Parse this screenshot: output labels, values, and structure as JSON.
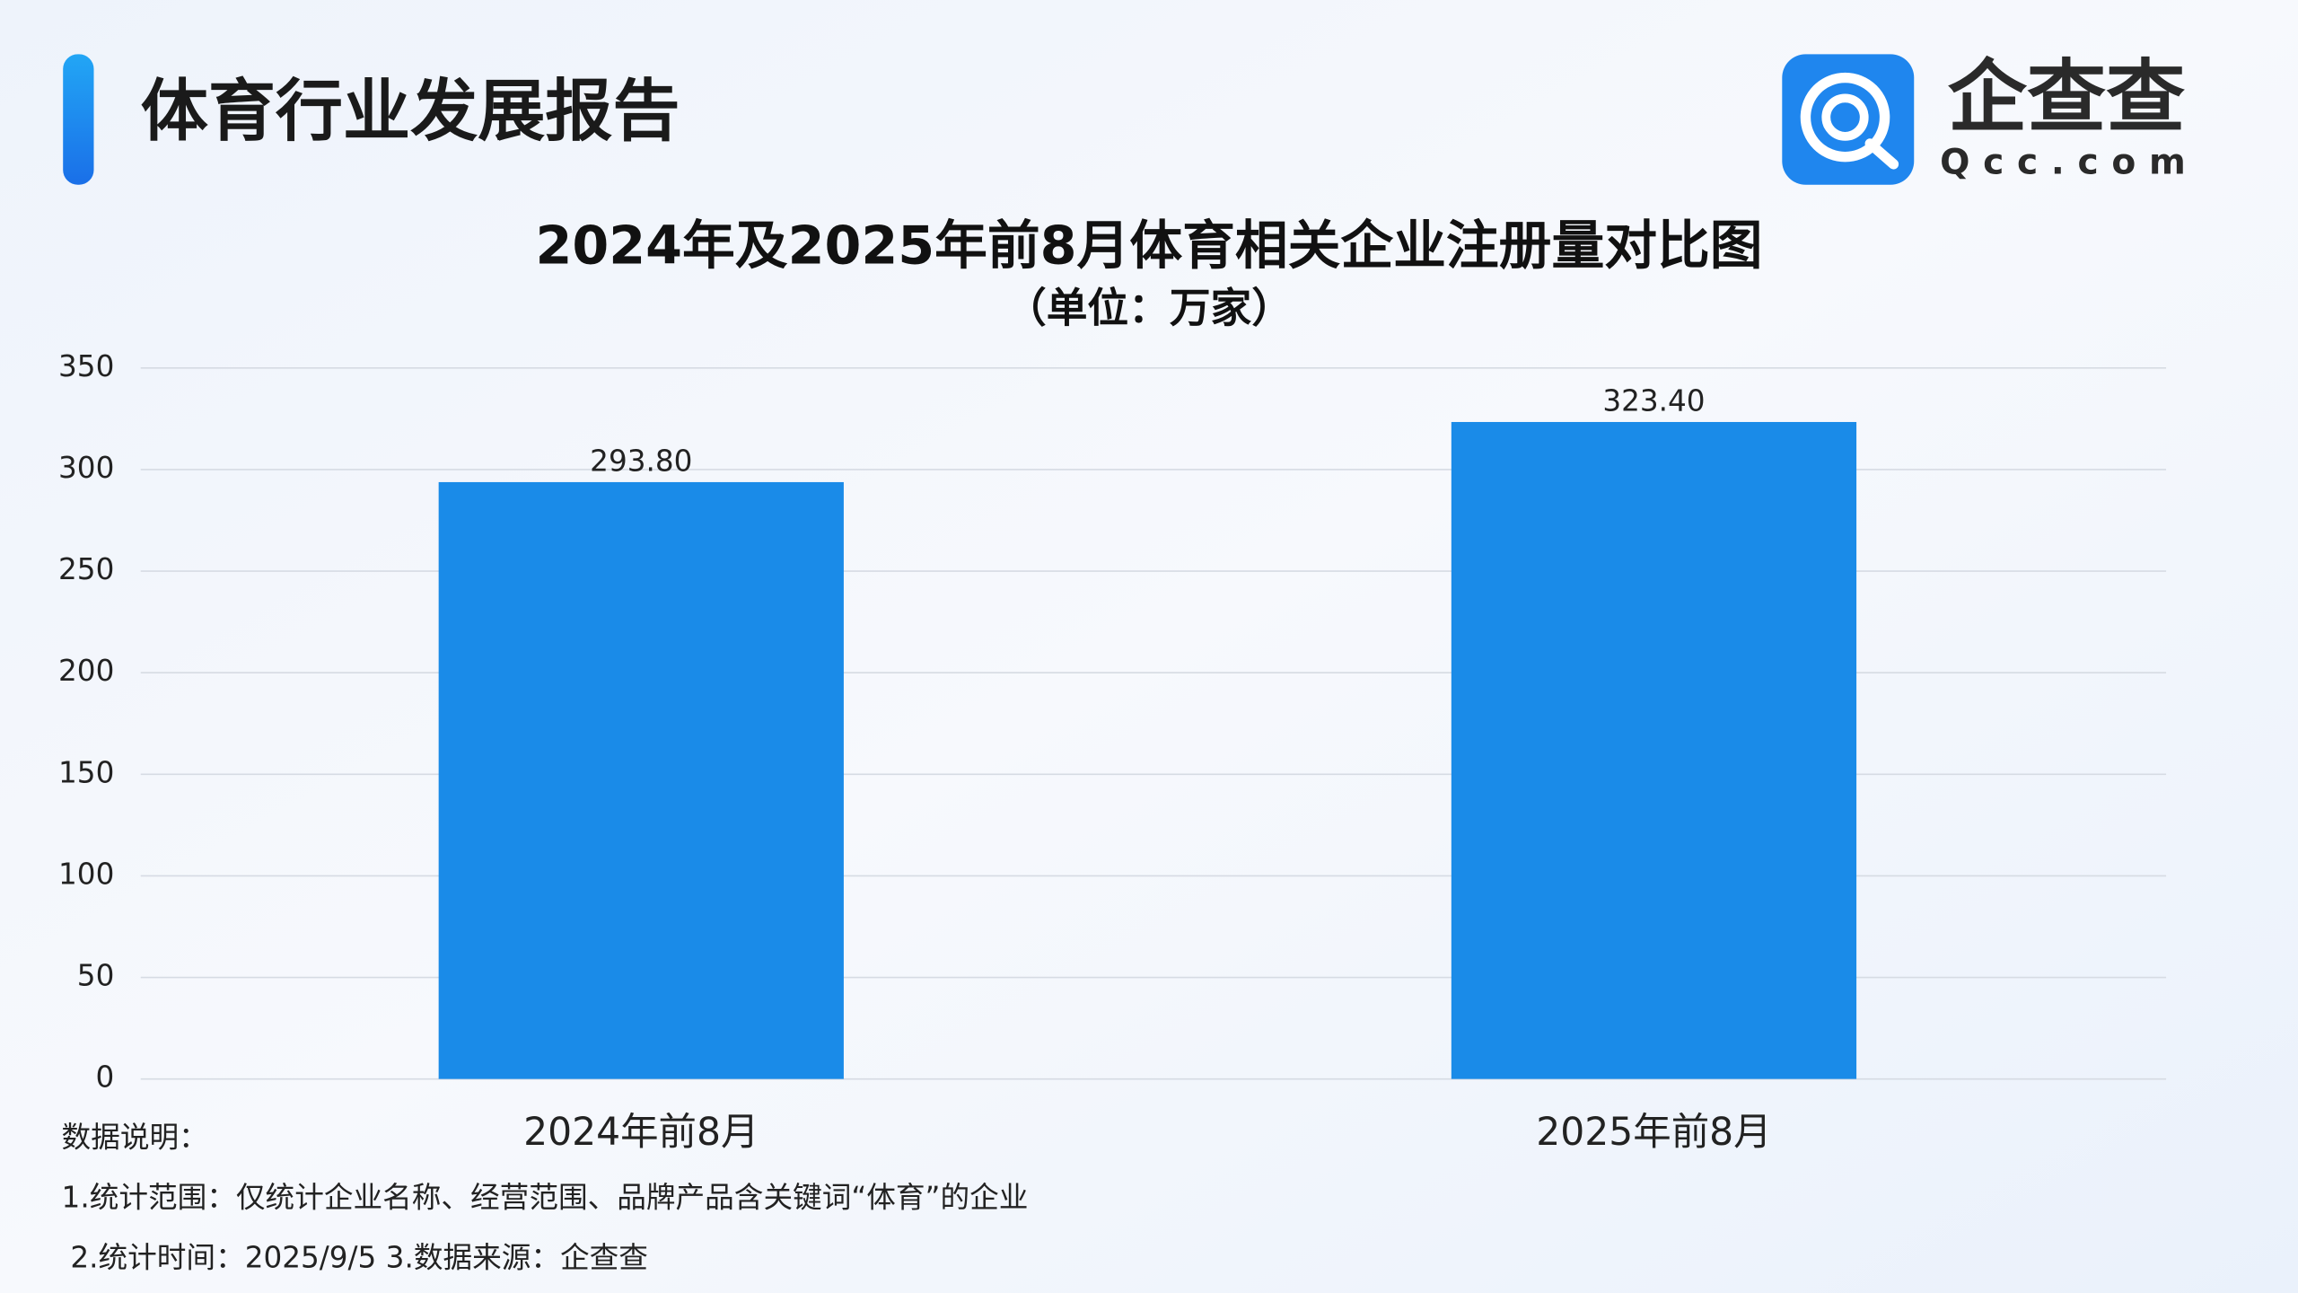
{
  "header": {
    "title": "体育行业发展报告"
  },
  "logo": {
    "name": "企查查",
    "domain": "Qcc.com"
  },
  "chart_data": {
    "type": "bar",
    "title": "2024年及2025年前8月体育相关企业注册量对比图",
    "subtitle": "（单位：万家）",
    "categories": [
      "2024年前8月",
      "2025年前8月"
    ],
    "values": [
      293.8,
      323.4
    ],
    "value_labels": [
      "293.80",
      "323.40"
    ],
    "color": "#1a8be8",
    "ylim": [
      0,
      350
    ],
    "yticks": [
      0,
      50,
      100,
      150,
      200,
      250,
      300,
      350
    ],
    "grid": true
  },
  "notes": {
    "heading": "数据说明：",
    "lines": [
      "1.统计范围：仅统计企业名称、经营范围、品牌产品含关键词“体育”的企业",
      "2.统计时间：2025/9/5  3.数据来源：企查查"
    ]
  }
}
